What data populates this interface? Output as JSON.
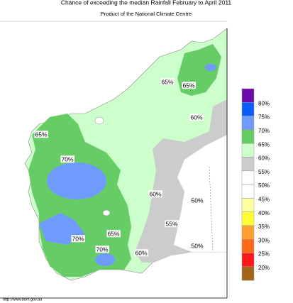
{
  "header": {
    "title": "Chance of exceeding the median Rainfall February to April 2011",
    "subtitle": "Product of the National Climate Centre"
  },
  "legend": {
    "labels": [
      "80%",
      "75%",
      "70%",
      "65%",
      "60%",
      "55%",
      "50%",
      "45%",
      "40%",
      "35%",
      "30%",
      "25%",
      "20%"
    ],
    "colors": [
      "#6a0aa8",
      "#0a5cff",
      "#6f9bff",
      "#66cc66",
      "#ccffcc",
      "#cccccc",
      "#ffffff",
      "#ffffff",
      "#ffffa0",
      "#ffff33",
      "#ffa030",
      "#ff6a1a",
      "#ff1a1a",
      "#a0661a"
    ]
  },
  "map_labels": [
    "65%",
    "70%",
    "65%",
    "65%",
    "60%",
    "60%",
    "55%",
    "50%",
    "50%",
    "70%",
    "65%",
    "70%",
    "60%"
  ],
  "footer": "http://www.bom.gov.au"
}
